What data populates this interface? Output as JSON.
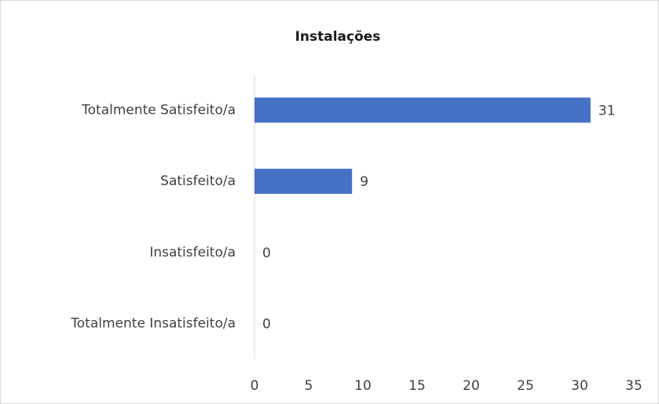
{
  "chart_data": {
    "type": "hbar",
    "title": "Instalações",
    "categories": [
      "Totalmente Satisfeito/a",
      "Satisfeito/a",
      "Insatisfeito/a",
      "Totalmente Insatisfeito/a"
    ],
    "values": [
      31,
      9,
      0,
      0
    ],
    "color": "#4472c4",
    "xlim": [
      0,
      35
    ],
    "xticks": [
      0,
      5,
      10,
      15,
      20,
      25,
      30,
      35
    ],
    "grid": false
  }
}
